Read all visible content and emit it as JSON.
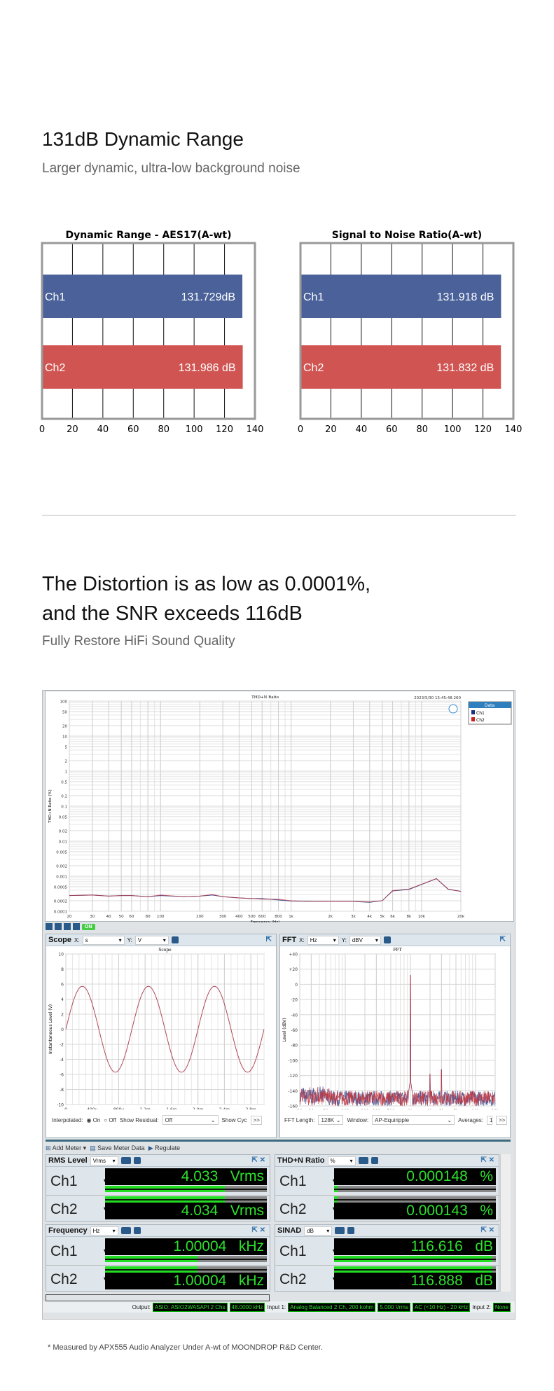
{
  "section1": {
    "title": "131dB Dynamic Range",
    "subtitle": "Larger dynamic, ultra-low background noise"
  },
  "section2": {
    "title_line1": "The Distortion is as low as 0.0001%,",
    "title_line2": "and the SNR exceeds 116dB",
    "subtitle": "Fully Restore HiFi Sound Quality"
  },
  "footnote": "* Measured by APX555 Audio Analyzer Under A-wt of MOONDROP R&D Center.",
  "colors": {
    "bar_ch1": "#4a6199",
    "bar_ch2": "#d05552",
    "trace_ch1": "#1f3c8c",
    "trace_ch2": "#c8323a",
    "meter_green": "#2de02d"
  },
  "chart_data": [
    {
      "type": "bar",
      "orientation": "horizontal",
      "title": "Dynamic Range - AES17(A-wt)",
      "categories": [
        "Ch1",
        "Ch2"
      ],
      "values": [
        131.729,
        131.986
      ],
      "value_labels": [
        "131.729dB",
        "131.986 dB"
      ],
      "xlim": [
        0,
        140
      ],
      "xticks": [
        0,
        20,
        40,
        60,
        80,
        100,
        120,
        140
      ],
      "grid": true
    },
    {
      "type": "bar",
      "orientation": "horizontal",
      "title": "Signal to Noise Ratio(A-wt)",
      "categories": [
        "Ch1",
        "Ch2"
      ],
      "values": [
        131.918,
        131.832
      ],
      "value_labels": [
        "131.918 dB",
        "131.832 dB"
      ],
      "xlim": [
        0,
        140
      ],
      "xticks": [
        0,
        20,
        40,
        60,
        80,
        100,
        120,
        140
      ],
      "grid": true
    },
    {
      "type": "line",
      "title": "THD+N Ratio",
      "timestamp": "2023/5/30 15:45:48.260",
      "xlabel": "Frequency (Hz)",
      "ylabel": "THD+N Ratio (%)",
      "xscale": "log",
      "yscale": "log",
      "xlim": [
        20,
        20000
      ],
      "ylim": [
        0.0001,
        100
      ],
      "xticks": [
        "20",
        "30",
        "40",
        "50",
        "60",
        "80",
        "100",
        "200",
        "300",
        "400",
        "500",
        "600",
        "800",
        "1k",
        "2k",
        "3k",
        "4k",
        "5k",
        "6k",
        "8k",
        "10k",
        "20k"
      ],
      "xtick_values": [
        20,
        30,
        40,
        50,
        60,
        80,
        100,
        200,
        300,
        400,
        500,
        600,
        800,
        1000,
        2000,
        3000,
        4000,
        5000,
        6000,
        8000,
        10000,
        20000
      ],
      "yticks": [
        "100",
        "50",
        "20",
        "10",
        "5",
        "2",
        "1",
        "0.5",
        "0.2",
        "0.1",
        "0.05",
        "0.02",
        "0.01",
        "0.005",
        "0.002",
        "0.001",
        "0.0005",
        "0.0002",
        "0.0001"
      ],
      "ytick_values": [
        100,
        50,
        20,
        10,
        5,
        2,
        1,
        0.5,
        0.2,
        0.1,
        0.05,
        0.02,
        0.01,
        0.005,
        0.002,
        0.001,
        0.0005,
        0.0002,
        0.0001
      ],
      "legend_title": "Data",
      "legend": "top-right",
      "x": [
        20,
        30,
        40,
        50,
        60,
        80,
        100,
        150,
        200,
        250,
        300,
        400,
        500,
        600,
        800,
        1000,
        1500,
        2000,
        3000,
        4000,
        5000,
        6000,
        8000,
        10000,
        13000,
        16000,
        20000
      ],
      "series": [
        {
          "name": "Ch1",
          "values": [
            0.00028,
            0.00029,
            0.00027,
            0.00028,
            0.00028,
            0.00026,
            0.00028,
            0.00026,
            0.00027,
            0.00029,
            0.00026,
            0.00024,
            0.00023,
            0.00023,
            0.00021,
            0.000195,
            0.00019,
            0.00019,
            0.00019,
            0.00018,
            0.0002,
            0.00038,
            0.00042,
            0.00058,
            0.00085,
            0.00042,
            0.00037
          ]
        },
        {
          "name": "Ch2",
          "values": [
            0.00028,
            0.00029,
            0.00027,
            0.00028,
            0.00028,
            0.00026,
            0.00029,
            0.00026,
            0.00027,
            0.0003,
            0.00026,
            0.00024,
            0.00023,
            0.00022,
            0.00022,
            0.0002,
            0.00019,
            0.00019,
            0.00019,
            0.000185,
            0.0002,
            0.00039,
            0.00043,
            0.00059,
            0.00086,
            0.00043,
            0.00037
          ]
        }
      ]
    },
    {
      "type": "line",
      "title": "Scope",
      "xlabel": "Time (s)",
      "ylabel": "Instantaneous Level (V)",
      "xlim": [
        0,
        0.003
      ],
      "ylim": [
        -10,
        10
      ],
      "xticks": [
        "0",
        "400u",
        "800u",
        "1.2m",
        "1.6m",
        "2.0m",
        "2.4m",
        "2.8m"
      ],
      "xtick_values": [
        0,
        0.0004,
        0.0008,
        0.0012,
        0.0016,
        0.002,
        0.0024,
        0.0028
      ],
      "yticks": [
        "10",
        "8",
        "6",
        "4",
        "2",
        "0",
        "-2",
        "-4",
        "-6",
        "-8",
        "-10"
      ],
      "ytick_values": [
        10,
        8,
        6,
        4,
        2,
        0,
        -2,
        -4,
        -6,
        -8,
        -10
      ],
      "signal": {
        "waveform": "sine",
        "frequency_hz": 1000,
        "amplitude_v": 5.7
      }
    },
    {
      "type": "line",
      "title": "FFT",
      "xlabel": "Frequency (Hz)",
      "ylabel": "Level (dBV)",
      "xscale": "log",
      "xlim": [
        20,
        20000
      ],
      "ylim": [
        -160,
        40
      ],
      "xticks": [
        "20",
        "30",
        "50",
        "100",
        "200",
        "300",
        "500",
        "1k",
        "2k",
        "3k",
        "5k",
        "10k",
        "20k"
      ],
      "xtick_values": [
        20,
        30,
        50,
        100,
        200,
        300,
        500,
        1000,
        2000,
        3000,
        5000,
        10000,
        20000
      ],
      "yticks": [
        "+40",
        "+20",
        "0",
        "-20",
        "-40",
        "-60",
        "-80",
        "-100",
        "-120",
        "-140",
        "-160"
      ],
      "ytick_values": [
        40,
        20,
        0,
        -20,
        -40,
        -60,
        -80,
        -100,
        -120,
        -140,
        -160
      ],
      "peaks": [
        {
          "frequency_hz": 1000,
          "level_dbv": 12
        },
        {
          "frequency_hz": 2000,
          "level_dbv": -118
        },
        {
          "frequency_hz": 3000,
          "level_dbv": -112
        }
      ],
      "noise_floor_dbv": [
        -160,
        -135
      ]
    }
  ],
  "apx": {
    "toolbar_on": "ON",
    "scope": {
      "name": "Scope",
      "x_label": "X:",
      "x_unit": "s",
      "y_label": "Y:",
      "y_unit": "V",
      "interpolated": "Interpolated:",
      "on": "On",
      "off": "Off",
      "interpolated_value": "On",
      "show_residual": "Show Residual:",
      "residual_value": "Off",
      "show_cyc": "Show Cyc",
      "more": ">>"
    },
    "fft": {
      "name": "FFT",
      "x_label": "X:",
      "x_unit": "Hz",
      "y_label": "Y:",
      "y_unit": "dBV",
      "fft_length_label": "FFT Length:",
      "fft_length": "128K",
      "window_label": "Window:",
      "window": "AP-Equiripple",
      "averages_label": "Averages:",
      "averages": "1",
      "more": ">>"
    },
    "meter_toolbar": {
      "add_meter": "Add Meter",
      "save": "Save Meter Data",
      "regulate": "Regulate"
    },
    "meters": [
      {
        "name": "RMS Level",
        "unit_select": "Vrms",
        "rows": [
          {
            "ch": "Ch1",
            "value": "4.033",
            "unit": "Vrms",
            "fill": 0.74
          },
          {
            "ch": "Ch2",
            "value": "4.034",
            "unit": "Vrms",
            "fill": 0.74
          }
        ]
      },
      {
        "name": "THD+N Ratio",
        "unit_select": "%",
        "rows": [
          {
            "ch": "Ch1",
            "value": "0.000148",
            "unit": "%",
            "fill": 0.02
          },
          {
            "ch": "Ch2",
            "value": "0.000143",
            "unit": "%",
            "fill": 0.02
          }
        ]
      },
      {
        "name": "Frequency",
        "unit_select": "Hz",
        "rows": [
          {
            "ch": "Ch1",
            "value": "1.00004",
            "unit": "kHz",
            "fill": 0.57
          },
          {
            "ch": "Ch2",
            "value": "1.00004",
            "unit": "kHz",
            "fill": 0.57
          }
        ]
      },
      {
        "name": "SINAD",
        "unit_select": "dB",
        "rows": [
          {
            "ch": "Ch1",
            "value": "116.616",
            "unit": "dB",
            "fill": 0.98
          },
          {
            "ch": "Ch2",
            "value": "116.888",
            "unit": "dB",
            "fill": 0.98
          }
        ]
      }
    ],
    "status": {
      "output_label": "Output:",
      "output": "ASIO: ASIO2WASAPI 2 Chs",
      "rate": "48.0000 kHz",
      "input1_label": "Input 1:",
      "input1": "Analog Balanced 2 Ch, 200 kohm",
      "range": "5.000 Vrms",
      "filter": "AC (<10 Hz) - 20 kHz",
      "input2_label": "Input 2:",
      "input2": "None"
    }
  }
}
